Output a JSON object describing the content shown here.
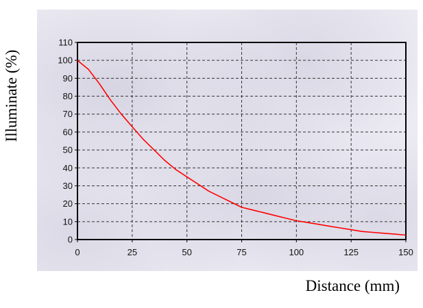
{
  "chart_data": {
    "type": "line",
    "xlabel": "Distance (mm)",
    "ylabel": "Illuminate (%)",
    "xlim": [
      0,
      150
    ],
    "ylim": [
      0,
      110
    ],
    "xticks": [
      0,
      25,
      50,
      75,
      100,
      125,
      150
    ],
    "yticks": [
      0,
      10,
      20,
      30,
      40,
      50,
      60,
      70,
      80,
      90,
      100,
      110
    ],
    "grid": true,
    "series": [
      {
        "color": "#ff0000",
        "x": [
          0,
          5,
          10,
          15,
          20,
          25,
          30,
          35,
          40,
          45,
          50,
          55,
          60,
          65,
          70,
          75,
          80,
          85,
          90,
          95,
          100,
          105,
          110,
          115,
          120,
          125,
          130,
          135,
          140,
          145,
          150
        ],
        "y": [
          100,
          95,
          87,
          78,
          70,
          63,
          56,
          50,
          44,
          39,
          35,
          31,
          27,
          24,
          21,
          18,
          16.5,
          15,
          13.5,
          12,
          10.5,
          9.5,
          8.5,
          7.5,
          6.5,
          5.5,
          4.5,
          4,
          3.5,
          3,
          2.5
        ]
      }
    ]
  }
}
